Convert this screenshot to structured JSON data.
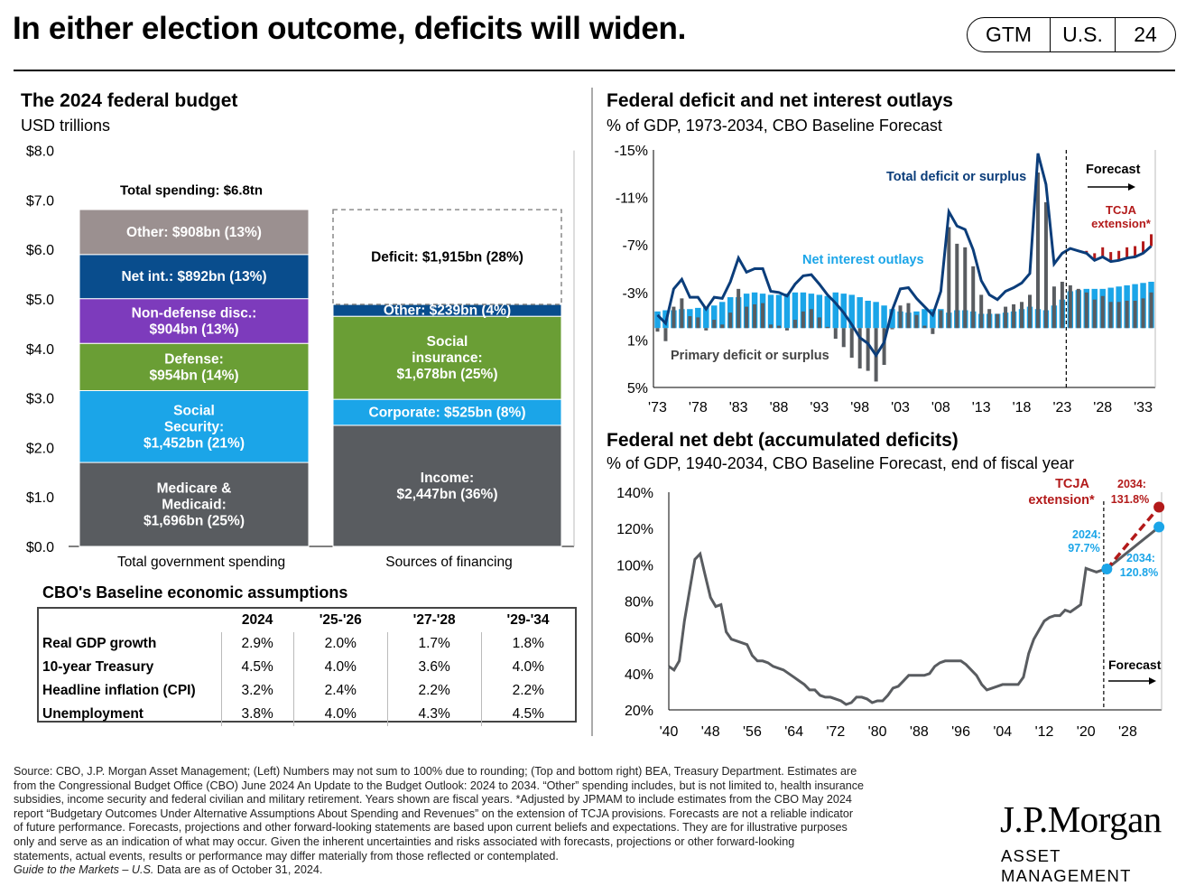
{
  "header": {
    "title": "In either election outcome, deficits will widen.",
    "badge": [
      "GTM",
      "U.S.",
      "24"
    ]
  },
  "left_panel": {
    "title": "The 2024 federal budget",
    "subtitle": "USD trillions",
    "total_label": "Total spending: $6.8tn",
    "chart_data": {
      "type": "bar",
      "stacked": true,
      "unit": "USD trillions",
      "ylim": [
        0,
        8
      ],
      "yticks": [
        "$0.0",
        "$1.0",
        "$2.0",
        "$3.0",
        "$4.0",
        "$5.0",
        "$6.0",
        "$7.0",
        "$8.0"
      ],
      "categories": [
        "Total government spending",
        "Sources of financing"
      ],
      "stacks": [
        [
          {
            "label": "Medicare & Medicaid: $1,696bn (25%)",
            "value": 1.696,
            "color": "#595c60"
          },
          {
            "label": "Social Security: $1,452bn (21%)",
            "value": 1.452,
            "color": "#1ba5e8"
          },
          {
            "label": "Defense: $954bn (14%)",
            "value": 0.954,
            "color": "#6a9e35"
          },
          {
            "label": "Non-defense disc.: $904bn (13%)",
            "value": 0.904,
            "color": "#7d3bbc"
          },
          {
            "label": "Net int.: $892bn (13%)",
            "value": 0.892,
            "color": "#094d8d"
          },
          {
            "label": "Other: $908bn (13%)",
            "value": 0.908,
            "color": "#9b9090"
          }
        ],
        [
          {
            "label": "Income: $2,447bn (36%)",
            "value": 2.447,
            "color": "#595c60"
          },
          {
            "label": "Corporate: $525bn (8%)",
            "value": 0.525,
            "color": "#1ba5e8"
          },
          {
            "label": "Social insurance: $1,678bn (25%)",
            "value": 1.678,
            "color": "#6a9e35"
          },
          {
            "label": "Other: $239bn (4%)",
            "value": 0.239,
            "color": "#094d8d"
          },
          {
            "label": "Deficit: $1,915bn (28%)",
            "value": 1.915,
            "color": "#ffffff",
            "dashed": true
          }
        ]
      ],
      "segment_text": [
        [
          "Medicare &",
          "Medicaid:",
          "$1,696bn (25%)"
        ],
        [
          "Social",
          "Security:",
          "$1,452bn (21%)"
        ],
        [
          "Defense:",
          "$954bn (14%)"
        ],
        [
          "Non-defense disc.:",
          "$904bn (13%)"
        ],
        [
          "Net int.: $892bn (13%)"
        ],
        [
          "Other: $908bn (13%)"
        ],
        [
          "Income:",
          "$2,447bn (36%)"
        ],
        [
          "Corporate: $525bn (8%)"
        ],
        [
          "Social",
          "insurance:",
          "$1,678bn (25%)"
        ],
        [
          "Other: $239bn (4%)"
        ],
        [
          "Deficit: $1,915bn (28%)"
        ]
      ]
    }
  },
  "cbo_table": {
    "title": "CBO's Baseline economic assumptions",
    "columns": [
      "2024",
      "'25-'26",
      "'27-'28",
      "'29-'34"
    ],
    "rows": [
      {
        "label": "Real GDP growth",
        "values": [
          "2.9%",
          "2.0%",
          "1.7%",
          "1.8%"
        ]
      },
      {
        "label": "10-year Treasury",
        "values": [
          "4.5%",
          "4.0%",
          "3.6%",
          "4.0%"
        ]
      },
      {
        "label": "Headline inflation (CPI)",
        "values": [
          "3.2%",
          "2.4%",
          "2.2%",
          "2.2%"
        ]
      },
      {
        "label": "Unemployment",
        "values": [
          "3.8%",
          "4.0%",
          "4.3%",
          "4.5%"
        ]
      }
    ]
  },
  "deficit_panel": {
    "title": "Federal deficit and net interest outlays",
    "subtitle": "% of GDP, 1973-2034, CBO Baseline Forecast",
    "chart_data": {
      "type": "bar",
      "unit": "% of GDP",
      "ylim": [
        -15,
        5
      ],
      "inverted_axis": true,
      "yticks": [
        "-15%",
        "-11%",
        "-7%",
        "-3%",
        "1%",
        "5%"
      ],
      "xticks": [
        "'73",
        "'78",
        "'83",
        "'88",
        "'93",
        "'98",
        "'03",
        "'08",
        "'13",
        "'18",
        "'23",
        "'28",
        "'33"
      ],
      "x": [
        1973,
        1974,
        1975,
        1976,
        1977,
        1978,
        1979,
        1980,
        1981,
        1982,
        1983,
        1984,
        1985,
        1986,
        1987,
        1988,
        1989,
        1990,
        1991,
        1992,
        1993,
        1994,
        1995,
        1996,
        1997,
        1998,
        1999,
        2000,
        2001,
        2002,
        2003,
        2004,
        2005,
        2006,
        2007,
        2008,
        2009,
        2010,
        2011,
        2012,
        2013,
        2014,
        2015,
        2016,
        2017,
        2018,
        2019,
        2020,
        2021,
        2022,
        2023,
        2024,
        2025,
        2026,
        2027,
        2028,
        2029,
        2030,
        2031,
        2032,
        2033,
        2034
      ],
      "forecast_start": 2024,
      "series": [
        {
          "name": "Total deficit or surplus",
          "type": "line",
          "color": "#0b3d7a",
          "values": [
            -1.1,
            -0.4,
            -3.3,
            -4.1,
            -2.6,
            -2.6,
            -1.6,
            -2.6,
            -2.5,
            -3.9,
            -5.9,
            -4.7,
            -5.0,
            -5.0,
            -3.1,
            -3.0,
            -2.7,
            -3.7,
            -4.4,
            -4.5,
            -3.7,
            -2.8,
            -2.1,
            -1.3,
            -0.3,
            0.8,
            1.3,
            2.3,
            1.2,
            -1.5,
            -3.3,
            -3.4,
            -2.5,
            -1.8,
            -1.1,
            -3.1,
            -9.8,
            -8.6,
            -8.3,
            -6.6,
            -4.0,
            -2.8,
            -2.4,
            -3.1,
            -3.4,
            -3.8,
            -4.6,
            -14.7,
            -12.1,
            -5.4,
            -6.3,
            -6.7,
            -6.5,
            -6.3,
            -5.7,
            -6.0,
            -5.6,
            -5.7,
            -5.9,
            -6.0,
            -6.3,
            -6.9
          ]
        },
        {
          "name": "Net interest outlays",
          "type": "bar",
          "color": "#1ba5e8",
          "values": [
            -1.4,
            -1.5,
            -1.5,
            -1.6,
            -1.6,
            -1.7,
            -1.8,
            -1.9,
            -2.2,
            -2.6,
            -2.6,
            -2.9,
            -3.0,
            -2.9,
            -2.8,
            -2.8,
            -2.9,
            -3.0,
            -3.0,
            -2.9,
            -2.8,
            -2.7,
            -3.0,
            -2.9,
            -2.8,
            -2.6,
            -2.3,
            -2.2,
            -1.9,
            -1.6,
            -1.4,
            -1.3,
            -1.4,
            -1.6,
            -1.6,
            -1.6,
            -1.3,
            -1.5,
            -1.5,
            -1.4,
            -1.2,
            -1.2,
            -1.2,
            -1.3,
            -1.4,
            -1.6,
            -1.8,
            -1.6,
            -1.5,
            -1.9,
            -2.4,
            -3.1,
            -3.2,
            -3.3,
            -3.3,
            -3.3,
            -3.4,
            -3.5,
            -3.6,
            -3.7,
            -3.8,
            -3.9
          ]
        },
        {
          "name": "Primary deficit or surplus",
          "type": "bar",
          "color": "#595c60",
          "values": [
            0.3,
            1.1,
            -1.8,
            -2.5,
            -1.0,
            -0.9,
            0.2,
            -0.7,
            -0.3,
            -1.3,
            -3.3,
            -1.8,
            -2.0,
            -2.1,
            -0.3,
            -0.2,
            0.2,
            -0.7,
            -1.4,
            -1.6,
            -0.9,
            -0.1,
            0.9,
            1.6,
            2.5,
            3.4,
            3.6,
            4.5,
            3.1,
            0.1,
            -1.9,
            -2.1,
            -1.1,
            -0.2,
            0.5,
            -1.5,
            -8.5,
            -7.1,
            -6.8,
            -5.2,
            -2.8,
            -1.6,
            -1.2,
            -1.8,
            -2.0,
            -2.2,
            -2.8,
            -13.1,
            -10.6,
            -3.5,
            -3.9,
            -3.6,
            -3.3,
            -3.0,
            -2.4,
            -2.7,
            -2.2,
            -2.2,
            -2.3,
            -2.3,
            -2.5,
            -3.0
          ]
        },
        {
          "name": "TCJA extension*",
          "type": "bar",
          "color": "#b31a1a",
          "values_forecast": [
            0,
            0,
            0.2,
            0.6,
            0.8,
            0.8,
            0.8,
            0.9,
            0.9,
            1.0,
            1.0
          ]
        }
      ],
      "annotations": {
        "total": "Total deficit or surplus",
        "interest": "Net interest outlays",
        "primary": "Primary deficit or surplus",
        "forecast": "Forecast",
        "tcja1": "TCJA",
        "tcja2": "extension*"
      }
    }
  },
  "debt_panel": {
    "title": "Federal net debt (accumulated deficits)",
    "subtitle": "% of GDP, 1940-2034, CBO Baseline Forecast, end of fiscal year",
    "chart_data": {
      "type": "line",
      "unit": "% of GDP",
      "ylim": [
        20,
        140
      ],
      "yticks": [
        "20%",
        "40%",
        "60%",
        "80%",
        "100%",
        "120%",
        "140%"
      ],
      "xticks": [
        "'40",
        "'48",
        "'56",
        "'64",
        "'72",
        "'80",
        "'88",
        "'96",
        "'04",
        "'12",
        "'20",
        "'28"
      ],
      "series": [
        {
          "name": "Net debt",
          "color": "#595c60",
          "x": [
            1940,
            1941,
            1942,
            1943,
            1944,
            1945,
            1946,
            1947,
            1948,
            1949,
            1950,
            1951,
            1952,
            1953,
            1954,
            1955,
            1956,
            1957,
            1958,
            1959,
            1960,
            1961,
            1962,
            1963,
            1964,
            1965,
            1966,
            1967,
            1968,
            1969,
            1970,
            1971,
            1972,
            1973,
            1974,
            1975,
            1976,
            1977,
            1978,
            1979,
            1980,
            1981,
            1982,
            1983,
            1984,
            1985,
            1986,
            1987,
            1988,
            1989,
            1990,
            1991,
            1992,
            1993,
            1994,
            1995,
            1996,
            1997,
            1998,
            1999,
            2000,
            2001,
            2002,
            2003,
            2004,
            2005,
            2006,
            2007,
            2008,
            2009,
            2010,
            2011,
            2012,
            2013,
            2014,
            2015,
            2016,
            2017,
            2018,
            2019,
            2020,
            2021,
            2022,
            2023,
            2024
          ],
          "y": [
            44,
            42,
            47,
            69,
            86,
            103,
            106,
            94,
            82,
            77,
            78,
            63,
            59,
            58,
            57,
            56,
            50,
            47,
            47,
            46,
            44,
            43,
            42,
            40,
            38,
            36,
            34,
            31,
            31,
            28,
            27,
            27,
            26,
            25,
            23,
            24,
            27,
            27,
            26,
            24,
            25,
            25,
            28,
            32,
            33,
            36,
            39,
            39,
            39,
            39,
            40,
            44,
            46,
            47,
            47,
            47,
            47,
            45,
            42,
            39,
            34,
            31,
            32,
            33,
            34,
            34,
            34,
            34,
            38,
            51,
            59,
            64,
            69,
            71,
            72,
            72,
            75,
            74,
            76,
            78,
            98,
            97,
            96,
            97,
            97.7
          ]
        },
        {
          "name": "CBO Baseline Forecast",
          "color": "#1ba5e8",
          "x": [
            2024,
            2034
          ],
          "y": [
            97.7,
            120.8
          ]
        },
        {
          "name": "TCJA extension*",
          "color": "#b31a1a",
          "dashed": true,
          "x": [
            2024,
            2034
          ],
          "y": [
            97.7,
            131.8
          ]
        }
      ],
      "annotations": {
        "tcja1": "TCJA",
        "tcja2": "extension*",
        "p2024a": "2024:",
        "p2024b": "97.7%",
        "p2034a": "2034:",
        "p2034b": "131.8%",
        "p2034c": "2034:",
        "p2034d": "120.8%",
        "forecast": "Forecast"
      }
    }
  },
  "footer": {
    "lines": [
      "Source: CBO, J.P. Morgan Asset Management; (Left) Numbers may not sum to 100% due to rounding; (Top and bottom right) BEA, Treasury Department. Estimates are",
      "from the Congressional Budget Office (CBO) June 2024 An Update to the Budget Outlook: 2024 to 2034. “Other” spending includes, but is not limited to, health insurance",
      "subsidies, income security and federal civilian and military retirement. Years shown are fiscal years. *Adjusted by JPMAM to include estimates from the CBO May 2024",
      "report “Budgetary Outcomes Under Alternative Assumptions About Spending and Revenues” on the extension of TCJA provisions. Forecasts are not a reliable indicator",
      "of future performance. Forecasts, projections and other forward-looking statements are based upon current beliefs and expectations. They are for illustrative purposes",
      "only and serve as an indication of what may occur. Given the inherent uncertainties and risks associated with forecasts, projections or other forward-looking",
      "statements, actual events, results or performance may differ materially from those reflected or contemplated."
    ],
    "guide_italic": "Guide to the Markets – U.S.",
    "guide_rest": " Data are as of October 31, 2024."
  },
  "logo": {
    "line1": "J.P.Morgan",
    "line2": "ASSET MANAGEMENT"
  }
}
